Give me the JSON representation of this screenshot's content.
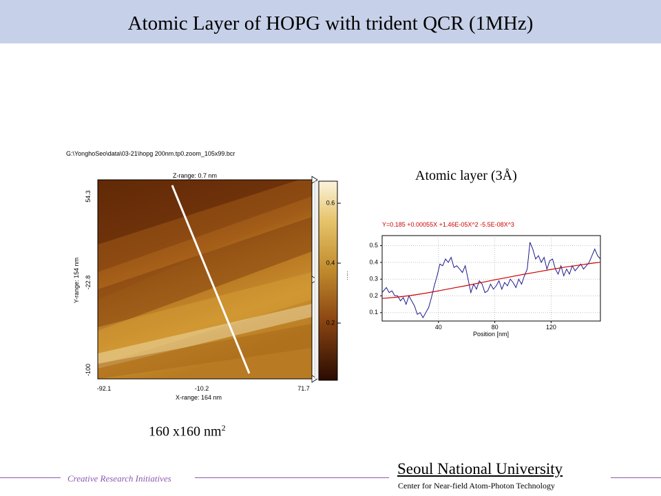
{
  "slide": {
    "title": "Atomic Layer of HOPG with trident QCR (1MHz)",
    "atomic_layer_label": "Atomic layer (3Å)",
    "area_label": "160 x160 nm",
    "area_sup": "2"
  },
  "afm_image": {
    "file_path": "G:\\YonghoSeo\\data\\03-21\\hopg 200nm.tp0.zoom_105x99.bcr",
    "z_range": "Z-range: 0.7 nm",
    "x_range": "X-range:  164 nm",
    "y_range": "Y-range:  154 nm",
    "x_ticks": [
      "-92.1",
      "-10.2",
      "71.7"
    ],
    "y_ticks": [
      "54.3",
      "-22.8",
      "-100"
    ],
    "colorbar_ticks": [
      "0.6",
      "0.4",
      "0.2"
    ],
    "colorbar_unit": "nm"
  },
  "chart_data": {
    "type": "line",
    "title": "Y=0.185 +0.00055X +1.46E-05X^2 -5.5E-08X^3",
    "xlabel": "Position [nm]",
    "ylabel": "",
    "x_ticks": [
      "40",
      "80",
      "120"
    ],
    "y_ticks": [
      "0.5",
      "0.4",
      "0.3",
      "0.2",
      "0.1"
    ],
    "xlim": [
      0,
      155
    ],
    "ylim": [
      0.05,
      0.56
    ],
    "series": [
      {
        "color": "#1a1a8c",
        "x": [
          0,
          3,
          5,
          7,
          9,
          11,
          13,
          15,
          17,
          19,
          21,
          23,
          25,
          27,
          29,
          31,
          33,
          35,
          37,
          39,
          41,
          43,
          45,
          47,
          49,
          51,
          53,
          55,
          57,
          59,
          61,
          63,
          65,
          67,
          69,
          71,
          73,
          75,
          77,
          79,
          81,
          83,
          85,
          87,
          89,
          91,
          93,
          95,
          97,
          99,
          101,
          103,
          105,
          107,
          109,
          111,
          113,
          115,
          117,
          119,
          121,
          123,
          125,
          127,
          129,
          131,
          133,
          135,
          137,
          139,
          141,
          143,
          145,
          147,
          149,
          151,
          153,
          155
        ],
        "y": [
          0.22,
          0.25,
          0.22,
          0.23,
          0.2,
          0.2,
          0.17,
          0.19,
          0.15,
          0.2,
          0.17,
          0.14,
          0.09,
          0.1,
          0.07,
          0.1,
          0.13,
          0.19,
          0.26,
          0.32,
          0.39,
          0.38,
          0.42,
          0.4,
          0.43,
          0.37,
          0.38,
          0.36,
          0.34,
          0.38,
          0.3,
          0.22,
          0.27,
          0.24,
          0.29,
          0.27,
          0.22,
          0.23,
          0.27,
          0.24,
          0.26,
          0.29,
          0.24,
          0.28,
          0.26,
          0.3,
          0.28,
          0.25,
          0.3,
          0.27,
          0.32,
          0.36,
          0.52,
          0.48,
          0.42,
          0.44,
          0.4,
          0.43,
          0.36,
          0.41,
          0.42,
          0.36,
          0.33,
          0.38,
          0.32,
          0.36,
          0.33,
          0.38,
          0.35,
          0.37,
          0.39,
          0.36,
          0.38,
          0.4,
          0.44,
          0.48,
          0.44,
          0.42
        ]
      },
      {
        "color": "#cc0000",
        "x": [
          0,
          10,
          20,
          30,
          40,
          50,
          60,
          70,
          80,
          90,
          100,
          110,
          120,
          130,
          140,
          150,
          155
        ],
        "y": [
          0.185,
          0.192,
          0.202,
          0.215,
          0.23,
          0.246,
          0.262,
          0.279,
          0.296,
          0.312,
          0.328,
          0.343,
          0.358,
          0.372,
          0.384,
          0.396,
          0.401
        ]
      }
    ]
  },
  "footer": {
    "cri": "Creative Research Initiatives",
    "university": "Seoul National University",
    "center": "Center for Near-field Atom-Photon Technology"
  }
}
